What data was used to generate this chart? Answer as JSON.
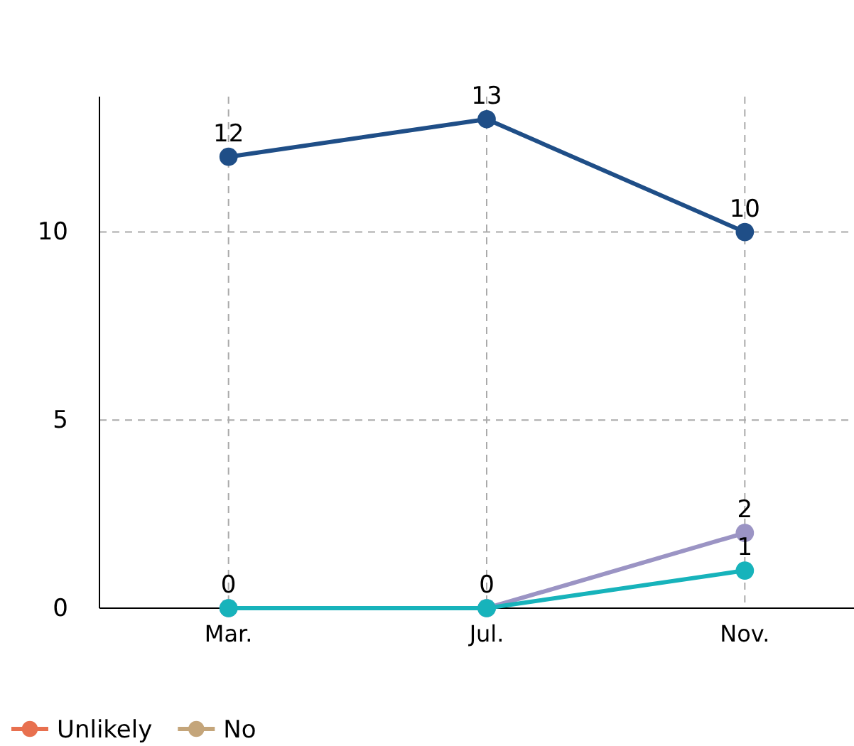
{
  "chart_data": {
    "type": "line",
    "categories": [
      "Mar.",
      "Jul.",
      "Nov."
    ],
    "series": [
      {
        "color": "#1f4e87",
        "values": [
          12,
          13,
          10
        ],
        "value_labels": [
          "12",
          "13",
          "10"
        ]
      },
      {
        "color": "#9b94c4",
        "values": [
          0,
          0,
          2
        ],
        "value_labels": [
          "0",
          "0",
          "2"
        ]
      },
      {
        "color": "#17b3bb",
        "values": [
          0,
          0,
          1
        ],
        "value_labels": [
          null,
          null,
          "1"
        ]
      },
      {
        "name": "Unlikely",
        "color": "#e8704f",
        "values": [
          null,
          null,
          null
        ]
      },
      {
        "name": "No",
        "color": "#c4a57a",
        "values": [
          null,
          null,
          null
        ]
      }
    ],
    "ylim": [
      0,
      13.6
    ],
    "yticks": [
      0,
      5,
      10
    ],
    "grid": true,
    "legend": "bottom",
    "marker": "circle"
  }
}
